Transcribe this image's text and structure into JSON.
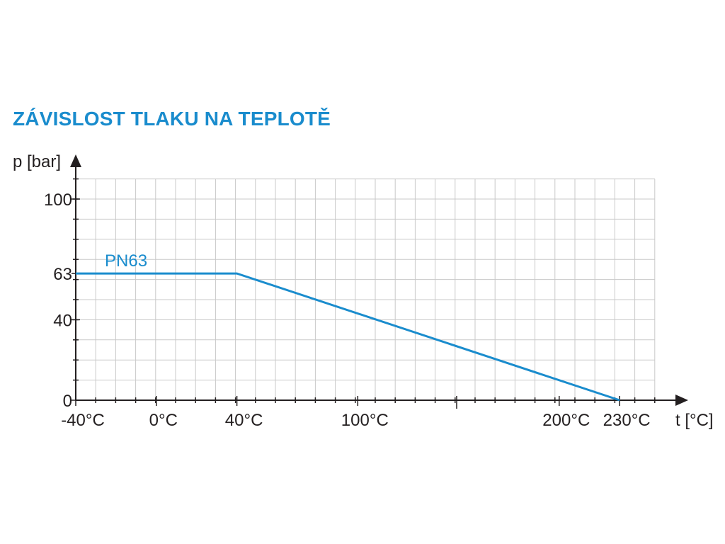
{
  "chart_data": {
    "type": "line",
    "title": "ZÁVISLOST TLAKU NA TEPLOTĚ",
    "ylabel": "p [bar]",
    "xlabel": "t [°C]",
    "x_ticks": [
      {
        "value": -40,
        "label": "-40°C"
      },
      {
        "value": 0,
        "label": "0°C"
      },
      {
        "value": 40,
        "label": "40°C"
      },
      {
        "value": 100,
        "label": "100°C"
      },
      {
        "value": 200,
        "label": "200°C"
      },
      {
        "value": 230,
        "label": "230°C"
      }
    ],
    "y_ticks": [
      {
        "value": 0,
        "label": "0"
      },
      {
        "value": 40,
        "label": "40"
      },
      {
        "value": 63,
        "label": "63"
      },
      {
        "value": 100,
        "label": "100"
      }
    ],
    "xlim": [
      -40,
      250
    ],
    "ylim": [
      0,
      110
    ],
    "grid": true,
    "series": [
      {
        "name": "PN63",
        "color": "#1a8ccd",
        "points": [
          [
            -40,
            63
          ],
          [
            40,
            63
          ],
          [
            230,
            0
          ]
        ]
      }
    ]
  }
}
